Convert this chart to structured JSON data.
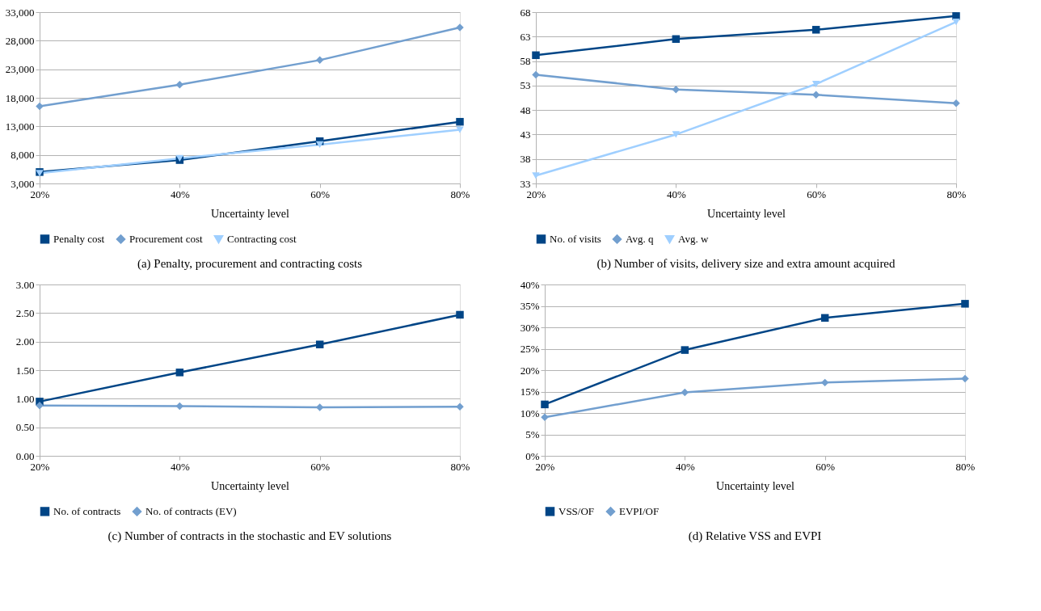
{
  "chart_data": [
    {
      "type": "line",
      "title": "(a) Penalty, procurement and contracting costs",
      "xlabel": "Uncertainty level",
      "categories": [
        "20%",
        "40%",
        "60%",
        "80%"
      ],
      "ylim": [
        3000,
        33000
      ],
      "yticks": [
        {
          "value": 3000,
          "label": "3,000"
        },
        {
          "value": 8000,
          "label": "8,000"
        },
        {
          "value": 13000,
          "label": "13,000"
        },
        {
          "value": 18000,
          "label": "18,000"
        },
        {
          "value": 23000,
          "label": "23,000"
        },
        {
          "value": 28000,
          "label": "28,000"
        },
        {
          "value": 33000,
          "label": "33,000"
        }
      ],
      "grid": "y",
      "legend": "bottom",
      "line_style": "solid",
      "series": [
        {
          "name": "Penalty cost",
          "color": "#004586",
          "marker": "square",
          "values": [
            5000,
            7100,
            10400,
            13800
          ]
        },
        {
          "name": "Procurement cost",
          "color": "#729fcf",
          "marker": "diamond",
          "values": [
            16500,
            20300,
            24600,
            30300
          ]
        },
        {
          "name": "Contracting cost",
          "color": "#9fcfff",
          "marker": "triangle-down",
          "values": [
            4800,
            7400,
            9800,
            12400
          ]
        }
      ]
    },
    {
      "type": "line",
      "title": "(b) Number of visits, delivery size and extra amount acquired",
      "xlabel": "Uncertainty level",
      "categories": [
        "20%",
        "40%",
        "60%",
        "80%"
      ],
      "ylim": [
        33,
        68
      ],
      "yticks": [
        33,
        38,
        43,
        48,
        53,
        58,
        63,
        68
      ],
      "grid": "y",
      "legend": "bottom",
      "line_style": "solid",
      "series": [
        {
          "name": "No. of visits",
          "color": "#004586",
          "marker": "square",
          "values": [
            59.2,
            62.5,
            64.4,
            67.2
          ]
        },
        {
          "name": "Avg. q",
          "color": "#729fcf",
          "marker": "diamond",
          "values": [
            55.2,
            52.2,
            51.1,
            49.4
          ]
        },
        {
          "name": "Avg. w",
          "color": "#9fcfff",
          "marker": "triangle-down",
          "values": [
            34.6,
            43.0,
            53.3,
            66.0
          ]
        }
      ]
    },
    {
      "type": "line",
      "title": "(c) Number of contracts in the stochastic and EV solutions",
      "xlabel": "Uncertainty level",
      "categories": [
        "20%",
        "40%",
        "60%",
        "80%"
      ],
      "ylim": [
        0,
        3
      ],
      "yticks": [
        {
          "value": 0,
          "label": "0.00"
        },
        {
          "value": 0.5,
          "label": "0.50"
        },
        {
          "value": 1,
          "label": "1.00"
        },
        {
          "value": 1.5,
          "label": "1.50"
        },
        {
          "value": 2,
          "label": "2.00"
        },
        {
          "value": 2.5,
          "label": "2.50"
        },
        {
          "value": 3,
          "label": "3.00"
        }
      ],
      "grid": "y",
      "legend": "bottom",
      "line_style": "solid",
      "series": [
        {
          "name": "No. of contracts",
          "color": "#004586",
          "marker": "square",
          "values": [
            0.95,
            1.46,
            1.95,
            2.47
          ]
        },
        {
          "name": "No. of contracts (EV)",
          "color": "#729fcf",
          "marker": "diamond",
          "values": [
            0.88,
            0.87,
            0.85,
            0.86
          ]
        }
      ]
    },
    {
      "type": "line",
      "title": "(d) Relative VSS and EVPI",
      "xlabel": "Uncertainty level",
      "categories": [
        "20%",
        "40%",
        "60%",
        "80%"
      ],
      "ylim": [
        0,
        40
      ],
      "yticks": [
        {
          "value": 0,
          "label": "0%"
        },
        {
          "value": 5,
          "label": "5%"
        },
        {
          "value": 10,
          "label": "10%"
        },
        {
          "value": 15,
          "label": "15%"
        },
        {
          "value": 20,
          "label": "20%"
        },
        {
          "value": 25,
          "label": "25%"
        },
        {
          "value": 30,
          "label": "30%"
        },
        {
          "value": 35,
          "label": "35%"
        },
        {
          "value": 40,
          "label": "40%"
        }
      ],
      "grid": "y",
      "legend": "bottom",
      "line_style": "solid",
      "series": [
        {
          "name": "VSS/OF",
          "color": "#004586",
          "marker": "square",
          "values": [
            12.0,
            24.7,
            32.2,
            35.5
          ]
        },
        {
          "name": "EVPI/OF",
          "color": "#729fcf",
          "marker": "diamond",
          "values": [
            9.0,
            14.8,
            17.1,
            18.0
          ]
        }
      ]
    }
  ]
}
